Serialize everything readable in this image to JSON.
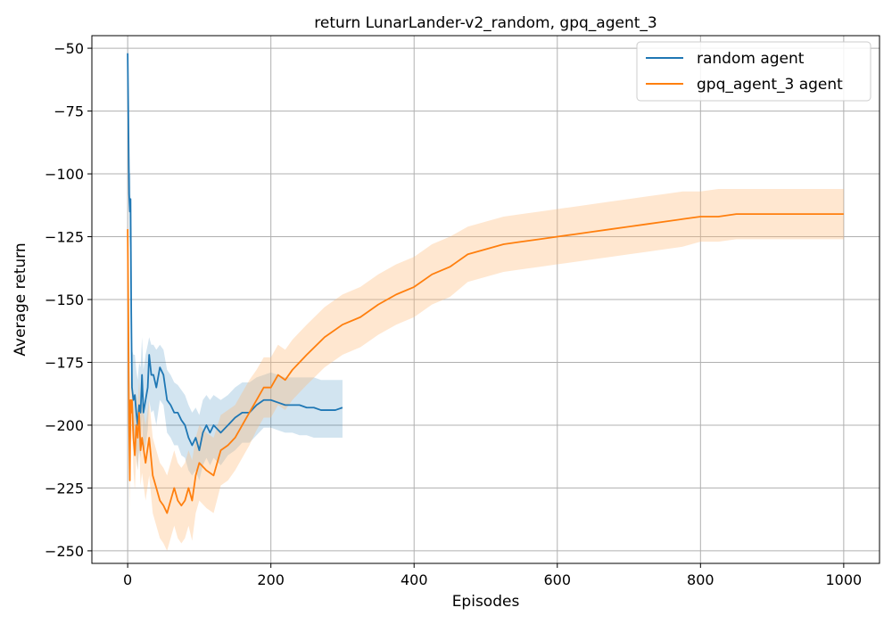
{
  "chart_data": {
    "type": "line",
    "title": "return LunarLander-v2_random, gpq_agent_3",
    "xlabel": "Episodes",
    "ylabel": "Average return",
    "xlim": [
      -50,
      1050
    ],
    "ylim": [
      -255,
      -45
    ],
    "xticks": [
      0,
      200,
      400,
      600,
      800,
      1000
    ],
    "xtick_labels": [
      "0",
      "200",
      "400",
      "600",
      "800",
      "1000"
    ],
    "yticks": [
      -50,
      -75,
      -100,
      -125,
      -150,
      -175,
      -200,
      -225,
      -250
    ],
    "ytick_labels": [
      "−50",
      "−75",
      "−100",
      "−125",
      "−150",
      "−175",
      "−200",
      "−225",
      "−250"
    ],
    "grid": true,
    "legend_position": "top-right",
    "series": [
      {
        "name": "random agent",
        "color": "#1f77b4",
        "band_color": "#1f77b4",
        "x": [
          0,
          2,
          3,
          4,
          5,
          6,
          8,
          10,
          12,
          14,
          16,
          18,
          20,
          22,
          25,
          28,
          30,
          33,
          36,
          40,
          45,
          50,
          55,
          60,
          65,
          70,
          75,
          80,
          85,
          90,
          95,
          100,
          105,
          110,
          115,
          120,
          130,
          140,
          150,
          160,
          170,
          180,
          190,
          200,
          210,
          220,
          230,
          240,
          250,
          260,
          270,
          280,
          290,
          300
        ],
        "y": [
          -52,
          -108,
          -115,
          -110,
          -155,
          -185,
          -190,
          -188,
          -195,
          -200,
          -192,
          -195,
          -180,
          -195,
          -190,
          -185,
          -172,
          -180,
          -180,
          -185,
          -177,
          -180,
          -190,
          -192,
          -195,
          -195,
          -198,
          -200,
          -205,
          -208,
          -205,
          -210,
          -203,
          -200,
          -203,
          -200,
          -203,
          -200,
          -197,
          -195,
          -195,
          -192,
          -190,
          -190,
          -191,
          -192,
          -192,
          -192,
          -193,
          -193,
          -194,
          -194,
          -194,
          -193
        ],
        "upper": [
          -45,
          -95,
          -100,
          -100,
          -140,
          -170,
          -172,
          -172,
          -178,
          -182,
          -175,
          -177,
          -165,
          -178,
          -172,
          -168,
          -165,
          -168,
          -168,
          -170,
          -168,
          -170,
          -178,
          -180,
          -183,
          -184,
          -186,
          -188,
          -192,
          -195,
          -193,
          -196,
          -190,
          -188,
          -190,
          -188,
          -190,
          -188,
          -185,
          -183,
          -183,
          -181,
          -180,
          -179,
          -180,
          -181,
          -181,
          -181,
          -181,
          -181,
          -182,
          -182,
          -182,
          -182
        ],
        "lower": [
          -60,
          -122,
          -130,
          -122,
          -170,
          -200,
          -208,
          -205,
          -212,
          -218,
          -210,
          -213,
          -196,
          -212,
          -208,
          -202,
          -190,
          -195,
          -194,
          -200,
          -190,
          -192,
          -203,
          -205,
          -208,
          -208,
          -212,
          -213,
          -218,
          -220,
          -218,
          -222,
          -216,
          -213,
          -216,
          -213,
          -216,
          -212,
          -210,
          -207,
          -207,
          -204,
          -201,
          -201,
          -202,
          -203,
          -203,
          -204,
          -204,
          -205,
          -205,
          -205,
          -205,
          -205
        ]
      },
      {
        "name": "gpq_agent_3 agent",
        "color": "#ff7f0e",
        "band_color": "#ffbb78",
        "x": [
          0,
          1,
          2,
          3,
          4,
          5,
          6,
          8,
          10,
          12,
          14,
          16,
          18,
          20,
          25,
          30,
          35,
          40,
          45,
          50,
          55,
          60,
          65,
          70,
          75,
          80,
          85,
          90,
          95,
          100,
          110,
          120,
          130,
          140,
          150,
          160,
          170,
          180,
          190,
          200,
          210,
          220,
          230,
          240,
          250,
          275,
          300,
          325,
          350,
          375,
          400,
          425,
          450,
          475,
          500,
          525,
          550,
          575,
          600,
          625,
          650,
          675,
          700,
          725,
          750,
          775,
          800,
          825,
          850,
          875,
          900,
          925,
          950,
          975,
          1000
        ],
        "y": [
          -122,
          -160,
          -200,
          -222,
          -190,
          -195,
          -190,
          -205,
          -212,
          -200,
          -205,
          -195,
          -210,
          -205,
          -215,
          -205,
          -220,
          -225,
          -230,
          -232,
          -235,
          -230,
          -225,
          -230,
          -232,
          -230,
          -225,
          -230,
          -220,
          -215,
          -218,
          -220,
          -210,
          -208,
          -205,
          -200,
          -195,
          -190,
          -185,
          -185,
          -180,
          -182,
          -178,
          -175,
          -172,
          -165,
          -160,
          -157,
          -152,
          -148,
          -145,
          -140,
          -137,
          -132,
          -130,
          -128,
          -127,
          -126,
          -125,
          -124,
          -123,
          -122,
          -121,
          -120,
          -119,
          -118,
          -117,
          -117,
          -116,
          -116,
          -116,
          -116,
          -116,
          -116,
          -116
        ],
        "upper": [
          -115,
          -150,
          -188,
          -210,
          -178,
          -183,
          -178,
          -192,
          -198,
          -187,
          -192,
          -182,
          -196,
          -191,
          -200,
          -190,
          -205,
          -210,
          -215,
          -217,
          -220,
          -215,
          -210,
          -215,
          -217,
          -215,
          -210,
          -214,
          -205,
          -200,
          -203,
          -205,
          -196,
          -194,
          -192,
          -187,
          -182,
          -178,
          -173,
          -173,
          -168,
          -170,
          -166,
          -163,
          -160,
          -153,
          -148,
          -145,
          -140,
          -136,
          -133,
          -128,
          -125,
          -121,
          -119,
          -117,
          -116,
          -115,
          -114,
          -113,
          -112,
          -111,
          -110,
          -109,
          -108,
          -107,
          -107,
          -106,
          -106,
          -106,
          -106,
          -106,
          -106,
          -106,
          -106
        ],
        "lower": [
          -130,
          -172,
          -212,
          -234,
          -202,
          -207,
          -202,
          -218,
          -226,
          -213,
          -218,
          -208,
          -224,
          -219,
          -230,
          -220,
          -235,
          -240,
          -245,
          -247,
          -250,
          -245,
          -240,
          -245,
          -247,
          -245,
          -240,
          -246,
          -235,
          -230,
          -233,
          -235,
          -224,
          -222,
          -218,
          -213,
          -208,
          -202,
          -197,
          -197,
          -192,
          -194,
          -190,
          -187,
          -184,
          -177,
          -172,
          -169,
          -164,
          -160,
          -157,
          -152,
          -149,
          -143,
          -141,
          -139,
          -138,
          -137,
          -136,
          -135,
          -134,
          -133,
          -132,
          -131,
          -130,
          -129,
          -127,
          -127,
          -126,
          -126,
          -126,
          -126,
          -126,
          -126,
          -126
        ]
      }
    ]
  }
}
